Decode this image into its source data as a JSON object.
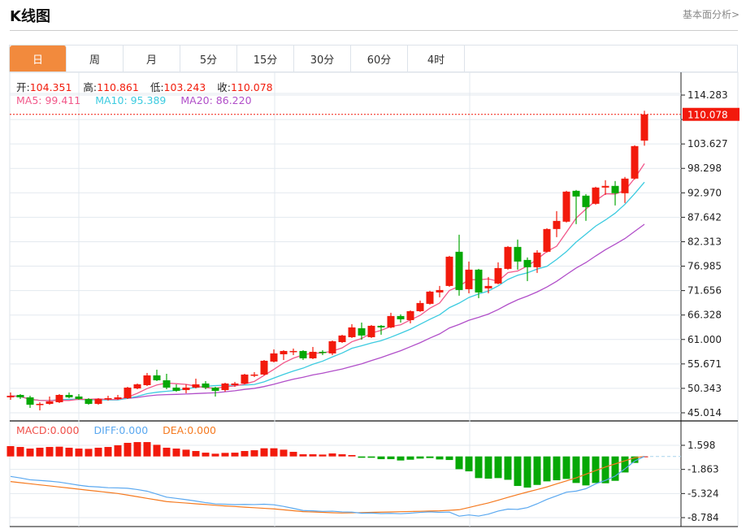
{
  "header": {
    "title": "K线图",
    "fundamental_link": "基本面分析>"
  },
  "tabs": [
    {
      "label": "日",
      "active": true
    },
    {
      "label": "周"
    },
    {
      "label": "月"
    },
    {
      "label": "5分"
    },
    {
      "label": "15分"
    },
    {
      "label": "30分"
    },
    {
      "label": "60分"
    },
    {
      "label": "4时"
    }
  ],
  "info": {
    "open_label": "开:",
    "open": "104.351",
    "high_label": "高:",
    "high": "110.861",
    "low_label": "低:",
    "low": "103.243",
    "close_label": "收:",
    "close": "110.078"
  },
  "ma_legend": {
    "ma5": "MA5: 99.411",
    "ma10": "MA10: 95.389",
    "ma20": "MA20: 86.220"
  },
  "macd_legend": {
    "macd": "MACD:0.000",
    "diff": "DIFF:0.000",
    "dea": "DEA:0.000"
  },
  "colors": {
    "up": "#f21a0c",
    "down": "#06a806",
    "ma5": "#f2588a",
    "ma10": "#3ccbe0",
    "ma20": "#b14fc9",
    "diff": "#5aa8f0",
    "dea": "#f57a20",
    "tab_active": "#f28a3d"
  },
  "chart_data": [
    {
      "type": "candlestick",
      "ylim": [
        45.014,
        114.283
      ],
      "y_ticks": [
        "114.283",
        "103.627",
        "98.298",
        "92.970",
        "87.642",
        "82.313",
        "76.985",
        "71.656",
        "66.328",
        "61.000",
        "55.671",
        "50.343",
        "45.014"
      ],
      "last_price_label": "110.078",
      "grid": true,
      "ma_periods": [
        5,
        10,
        20
      ],
      "ohlc": [
        [
          48.38,
          49.44,
          47.85,
          48.73
        ],
        [
          48.91,
          49.09,
          48.02,
          48.38
        ],
        [
          48.38,
          48.73,
          46.08,
          46.78
        ],
        [
          46.9,
          47.32,
          45.54,
          46.96
        ],
        [
          46.96,
          48.56,
          46.78,
          47.49
        ],
        [
          47.32,
          49.09,
          47.14,
          48.91
        ],
        [
          48.91,
          49.44,
          48.2,
          48.38
        ],
        [
          48.56,
          49.09,
          47.85,
          48.02
        ],
        [
          48.02,
          48.2,
          46.78,
          46.96
        ],
        [
          46.96,
          48.2,
          46.78,
          48.02
        ],
        [
          48.02,
          48.73,
          47.67,
          48.2
        ],
        [
          48.02,
          48.91,
          47.85,
          48.38
        ],
        [
          48.2,
          50.68,
          48.02,
          50.51
        ],
        [
          50.33,
          51.4,
          50.15,
          51.22
        ],
        [
          51.04,
          53.7,
          50.86,
          53.17
        ],
        [
          53.17,
          54.41,
          51.93,
          52.1
        ],
        [
          52.1,
          53.52,
          50.15,
          50.51
        ],
        [
          50.51,
          51.22,
          49.62,
          49.8
        ],
        [
          49.97,
          51.22,
          49.27,
          50.51
        ],
        [
          50.51,
          52.46,
          50.33,
          51.22
        ],
        [
          51.4,
          51.93,
          50.15,
          50.51
        ],
        [
          50.51,
          50.68,
          48.56,
          49.8
        ],
        [
          49.97,
          51.57,
          49.62,
          51.4
        ],
        [
          51.04,
          51.75,
          50.68,
          51.4
        ],
        [
          51.4,
          53.52,
          51.22,
          53.35
        ],
        [
          53.26,
          53.88,
          52.81,
          53.35
        ],
        [
          53.35,
          56.53,
          53.17,
          56.36
        ],
        [
          56.18,
          58.84,
          56.0,
          57.96
        ],
        [
          57.78,
          58.66,
          56.53,
          58.49
        ],
        [
          58.31,
          59.02,
          57.6,
          58.49
        ],
        [
          58.49,
          58.66,
          56.53,
          56.89
        ],
        [
          56.89,
          59.37,
          56.71,
          58.31
        ],
        [
          58.31,
          58.66,
          57.6,
          58.13
        ],
        [
          57.96,
          60.78,
          57.6,
          60.61
        ],
        [
          60.43,
          62.03,
          60.25,
          61.86
        ],
        [
          61.5,
          64.34,
          61.32,
          63.63
        ],
        [
          63.45,
          64.69,
          60.96,
          61.86
        ],
        [
          61.5,
          64.16,
          61.32,
          63.98
        ],
        [
          63.98,
          64.16,
          62.03,
          63.63
        ],
        [
          63.63,
          66.82,
          63.45,
          66.11
        ],
        [
          66.11,
          66.47,
          64.69,
          65.4
        ],
        [
          65.22,
          67.35,
          64.52,
          67.17
        ],
        [
          67.17,
          69.48,
          67.0,
          68.95
        ],
        [
          68.77,
          71.61,
          68.6,
          71.43
        ],
        [
          71.25,
          72.67,
          70.19,
          71.78
        ],
        [
          72.67,
          79.23,
          72.49,
          79.05
        ],
        [
          80.12,
          83.84,
          70.54,
          71.78
        ],
        [
          71.96,
          77.99,
          71.07,
          76.22
        ],
        [
          76.22,
          76.39,
          70.01,
          71.25
        ],
        [
          72.14,
          74.62,
          71.07,
          72.67
        ],
        [
          73.2,
          77.81,
          73.02,
          76.57
        ],
        [
          76.39,
          81.36,
          76.22,
          81.18
        ],
        [
          81.18,
          82.78,
          76.22,
          77.99
        ],
        [
          78.34,
          78.88,
          73.73,
          76.75
        ],
        [
          76.75,
          80.47,
          75.51,
          79.94
        ],
        [
          80.12,
          85.26,
          79.94,
          85.08
        ],
        [
          85.08,
          88.98,
          83.31,
          86.85
        ],
        [
          86.68,
          93.41,
          86.5,
          93.23
        ],
        [
          93.41,
          93.59,
          86.15,
          92.17
        ],
        [
          92.35,
          92.7,
          86.86,
          89.86
        ],
        [
          90.58,
          94.29,
          90.4,
          94.12
        ],
        [
          94.12,
          95.72,
          92.52,
          94.48
        ],
        [
          94.48,
          95.54,
          90.22,
          92.88
        ],
        [
          92.88,
          96.43,
          90.75,
          96.07
        ],
        [
          96.07,
          103.34,
          95.89,
          103.16
        ],
        [
          104.351,
          110.861,
          103.243,
          110.078
        ]
      ]
    },
    {
      "type": "bar",
      "ylim": [
        -8.784,
        1.598
      ],
      "y_ticks": [
        "1.598",
        "-1.863",
        "-5.324",
        "-8.784"
      ],
      "macd": [
        1.48,
        1.36,
        1.13,
        1.25,
        1.36,
        1.4,
        1.25,
        1.13,
        1.09,
        1.25,
        1.36,
        1.6,
        1.95,
        2.06,
        2.06,
        1.67,
        1.25,
        1.13,
        0.97,
        0.78,
        0.54,
        0.39,
        0.51,
        0.54,
        0.78,
        0.89,
        1.17,
        1.17,
        0.97,
        0.66,
        0.31,
        0.31,
        0.27,
        0.43,
        0.31,
        0.2,
        -0.19,
        -0.19,
        -0.39,
        -0.39,
        -0.58,
        -0.47,
        -0.31,
        -0.23,
        -0.43,
        -0.51,
        -1.83,
        -2.14,
        -3.11,
        -3.19,
        -3.11,
        -3.35,
        -4.24,
        -4.47,
        -4.09,
        -3.58,
        -3.42,
        -3.23,
        -3.81,
        -4.16,
        -3.81,
        -3.85,
        -3.5,
        -2.3,
        -0.93,
        0
      ],
      "diff": [
        -2.87,
        -3.09,
        -3.35,
        -3.45,
        -3.55,
        -3.69,
        -3.91,
        -4.13,
        -4.31,
        -4.38,
        -4.49,
        -4.52,
        -4.57,
        -4.75,
        -4.99,
        -5.41,
        -5.85,
        -6.02,
        -6.2,
        -6.41,
        -6.63,
        -6.81,
        -6.85,
        -6.92,
        -6.89,
        -6.91,
        -6.86,
        -6.94,
        -7.17,
        -7.46,
        -7.76,
        -7.81,
        -7.89,
        -7.86,
        -7.96,
        -7.99,
        -8.16,
        -8.13,
        -8.2,
        -8.17,
        -8.22,
        -8.14,
        -8.03,
        -7.96,
        -8.03,
        -7.99,
        -8.57,
        -8.4,
        -8.56,
        -8.28,
        -7.84,
        -7.56,
        -7.6,
        -7.35,
        -6.8,
        -6.17,
        -5.65,
        -5.13,
        -4.98,
        -4.63,
        -3.94,
        -3.44,
        -2.82,
        -1.78,
        -0.66,
        0
      ],
      "dea": [
        -3.61,
        -3.77,
        -3.92,
        -4.08,
        -4.23,
        -4.39,
        -4.54,
        -4.7,
        -4.86,
        -5.01,
        -5.17,
        -5.32,
        -5.55,
        -5.78,
        -6.02,
        -6.25,
        -6.48,
        -6.59,
        -6.69,
        -6.8,
        -6.9,
        -7.01,
        -7.11,
        -7.19,
        -7.28,
        -7.36,
        -7.45,
        -7.53,
        -7.66,
        -7.79,
        -7.92,
        -7.97,
        -8.03,
        -8.08,
        -8.12,
        -8.09,
        -8.06,
        -8.03,
        -8.0,
        -7.97,
        -7.93,
        -7.9,
        -7.87,
        -7.84,
        -7.81,
        -7.73,
        -7.65,
        -7.33,
        -7.0,
        -6.68,
        -6.28,
        -5.88,
        -5.48,
        -5.11,
        -4.75,
        -4.38,
        -3.94,
        -3.51,
        -3.07,
        -2.55,
        -2.03,
        -1.51,
        -1.07,
        -0.63,
        -0.19,
        0
      ]
    }
  ]
}
